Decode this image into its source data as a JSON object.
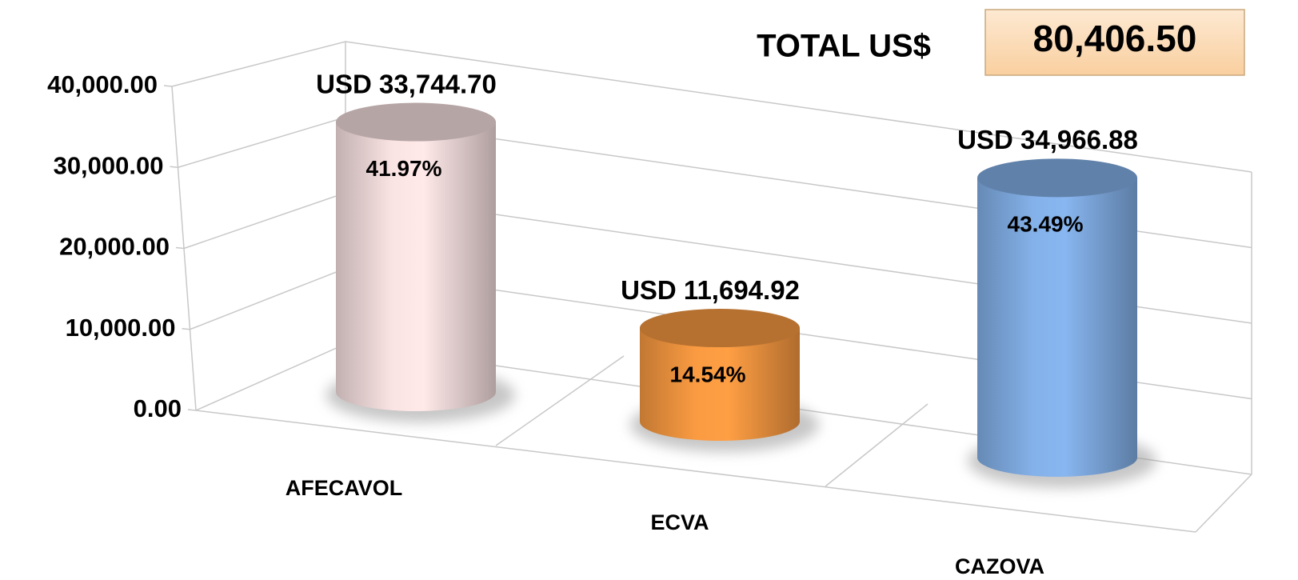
{
  "chart_data": {
    "type": "bar3d",
    "categories": [
      "AFECAVOL",
      "ECVA",
      "CAZOVA"
    ],
    "values": [
      33744.7,
      11694.92,
      34966.88
    ],
    "value_labels": [
      "USD 33,744.70",
      "USD 11,694.92",
      "USD 34,966.88"
    ],
    "shares": [
      41.97,
      14.54,
      43.49
    ],
    "share_labels": [
      "41.97%",
      "14.54%",
      "43.49%"
    ],
    "colors": [
      "#f3dcdc",
      "#f39640",
      "#80ace2"
    ],
    "ylim": [
      0,
      40000
    ],
    "yticks": [
      {
        "value": 0,
        "label": "0.00"
      },
      {
        "value": 10000,
        "label": "10,000.00"
      },
      {
        "value": 20000,
        "label": "20,000.00"
      },
      {
        "value": 30000,
        "label": "30,000.00"
      },
      {
        "value": 40000,
        "label": "40,000.00"
      }
    ],
    "grid": true,
    "total": {
      "label": "TOTAL US$",
      "value": 80406.5,
      "value_label": "80,406.50"
    }
  }
}
